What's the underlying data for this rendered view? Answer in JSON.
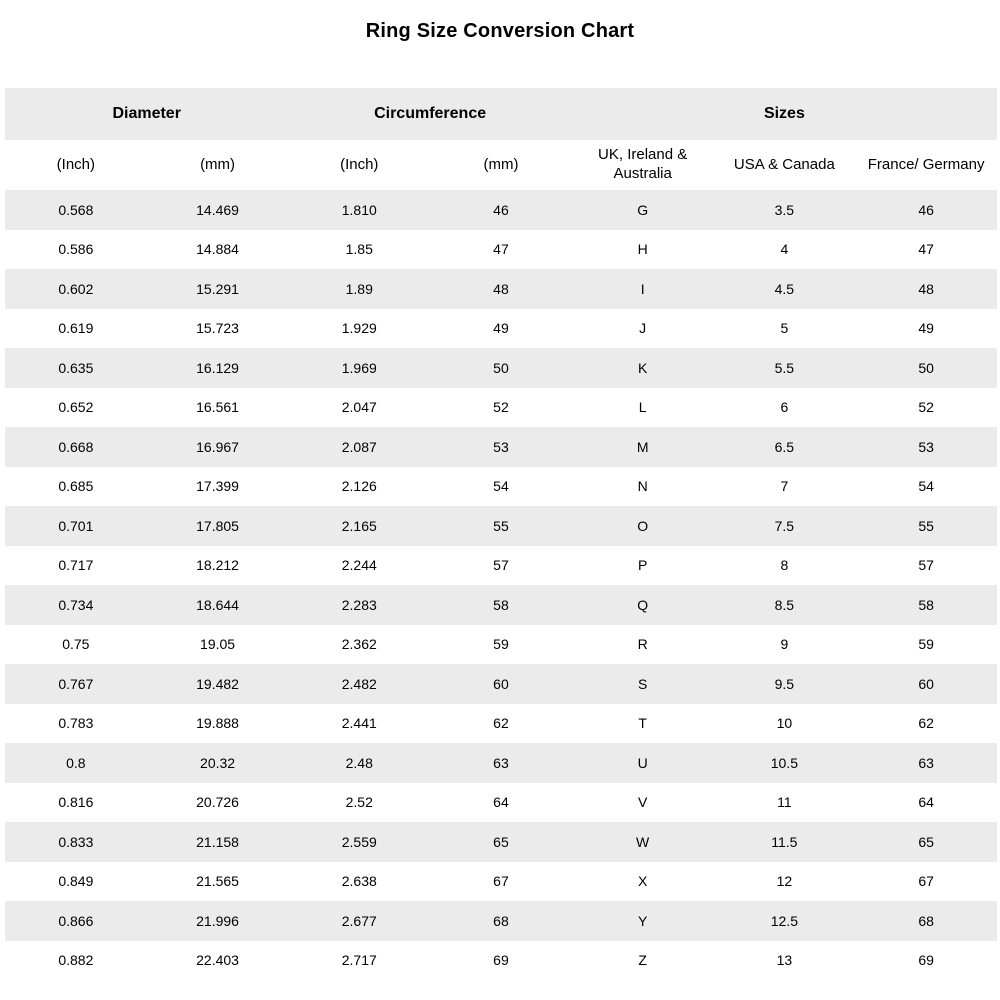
{
  "title": "Ring Size Conversion Chart",
  "colors": {
    "stripe": "#ebebeb",
    "background": "#ffffff",
    "text": "#000000"
  },
  "table": {
    "groups": [
      {
        "label": "Diameter",
        "span": "2"
      },
      {
        "label": "Circumference",
        "span": "2"
      },
      {
        "label": "Sizes",
        "span": "3"
      }
    ],
    "columns": [
      "(Inch)",
      "(mm)",
      "(Inch)",
      "(mm)",
      "UK, Ireland & Australia",
      "USA & Canada",
      "France/ Germany"
    ],
    "rows": [
      [
        "0.568",
        "14.469",
        "1.810",
        "46",
        "G",
        "3.5",
        "46"
      ],
      [
        "0.586",
        "14.884",
        "1.85",
        "47",
        "H",
        "4",
        "47"
      ],
      [
        "0.602",
        "15.291",
        "1.89",
        "48",
        "I",
        "4.5",
        "48"
      ],
      [
        "0.619",
        "15.723",
        "1.929",
        "49",
        "J",
        "5",
        "49"
      ],
      [
        "0.635",
        "16.129",
        "1.969",
        "50",
        "K",
        "5.5",
        "50"
      ],
      [
        "0.652",
        "16.561",
        "2.047",
        "52",
        "L",
        "6",
        "52"
      ],
      [
        "0.668",
        "16.967",
        "2.087",
        "53",
        "M",
        "6.5",
        "53"
      ],
      [
        "0.685",
        "17.399",
        "2.126",
        "54",
        "N",
        "7",
        "54"
      ],
      [
        "0.701",
        "17.805",
        "2.165",
        "55",
        "O",
        "7.5",
        "55"
      ],
      [
        "0.717",
        "18.212",
        "2.244",
        "57",
        "P",
        "8",
        "57"
      ],
      [
        "0.734",
        "18.644",
        "2.283",
        "58",
        "Q",
        "8.5",
        "58"
      ],
      [
        "0.75",
        "19.05",
        "2.362",
        "59",
        "R",
        "9",
        "59"
      ],
      [
        "0.767",
        "19.482",
        "2.482",
        "60",
        "S",
        "9.5",
        "60"
      ],
      [
        "0.783",
        "19.888",
        "2.441",
        "62",
        "T",
        "10",
        "62"
      ],
      [
        "0.8",
        "20.32",
        "2.48",
        "63",
        "U",
        "10.5",
        "63"
      ],
      [
        "0.816",
        "20.726",
        "2.52",
        "64",
        "V",
        "11",
        "64"
      ],
      [
        "0.833",
        "21.158",
        "2.559",
        "65",
        "W",
        "11.5",
        "65"
      ],
      [
        "0.849",
        "21.565",
        "2.638",
        "67",
        "X",
        "12",
        "67"
      ],
      [
        "0.866",
        "21.996",
        "2.677",
        "68",
        "Y",
        "12.5",
        "68"
      ],
      [
        "0.882",
        "22.403",
        "2.717",
        "69",
        "Z",
        "13",
        "69"
      ]
    ]
  },
  "chart_data": {
    "type": "table",
    "title": "Ring Size Conversion Chart",
    "column_groups": [
      {
        "label": "Diameter",
        "columns": [
          "(Inch)",
          "(mm)"
        ]
      },
      {
        "label": "Circumference",
        "columns": [
          "(Inch)",
          "(mm)"
        ]
      },
      {
        "label": "Sizes",
        "columns": [
          "UK, Ireland & Australia",
          "USA & Canada",
          "France/ Germany"
        ]
      }
    ],
    "columns": [
      "Diameter (Inch)",
      "Diameter (mm)",
      "Circumference (Inch)",
      "Circumference (mm)",
      "UK, Ireland & Australia",
      "USA & Canada",
      "France/ Germany"
    ],
    "rows": [
      [
        "0.568",
        "14.469",
        "1.810",
        "46",
        "G",
        "3.5",
        "46"
      ],
      [
        "0.586",
        "14.884",
        "1.85",
        "47",
        "H",
        "4",
        "47"
      ],
      [
        "0.602",
        "15.291",
        "1.89",
        "48",
        "I",
        "4.5",
        "48"
      ],
      [
        "0.619",
        "15.723",
        "1.929",
        "49",
        "J",
        "5",
        "49"
      ],
      [
        "0.635",
        "16.129",
        "1.969",
        "50",
        "K",
        "5.5",
        "50"
      ],
      [
        "0.652",
        "16.561",
        "2.047",
        "52",
        "L",
        "6",
        "52"
      ],
      [
        "0.668",
        "16.967",
        "2.087",
        "53",
        "M",
        "6.5",
        "53"
      ],
      [
        "0.685",
        "17.399",
        "2.126",
        "54",
        "N",
        "7",
        "54"
      ],
      [
        "0.701",
        "17.805",
        "2.165",
        "55",
        "O",
        "7.5",
        "55"
      ],
      [
        "0.717",
        "18.212",
        "2.244",
        "57",
        "P",
        "8",
        "57"
      ],
      [
        "0.734",
        "18.644",
        "2.283",
        "58",
        "Q",
        "8.5",
        "58"
      ],
      [
        "0.75",
        "19.05",
        "2.362",
        "59",
        "R",
        "9",
        "59"
      ],
      [
        "0.767",
        "19.482",
        "2.482",
        "60",
        "S",
        "9.5",
        "60"
      ],
      [
        "0.783",
        "19.888",
        "2.441",
        "62",
        "T",
        "10",
        "62"
      ],
      [
        "0.8",
        "20.32",
        "2.48",
        "63",
        "U",
        "10.5",
        "63"
      ],
      [
        "0.816",
        "20.726",
        "2.52",
        "64",
        "V",
        "11",
        "64"
      ],
      [
        "0.833",
        "21.158",
        "2.559",
        "65",
        "W",
        "11.5",
        "65"
      ],
      [
        "0.849",
        "21.565",
        "2.638",
        "67",
        "X",
        "12",
        "67"
      ],
      [
        "0.866",
        "21.996",
        "2.677",
        "68",
        "Y",
        "12.5",
        "68"
      ],
      [
        "0.882",
        "22.403",
        "2.717",
        "69",
        "Z",
        "13",
        "69"
      ]
    ],
    "layout": {
      "striped": true,
      "stripe_color": "#ebebeb",
      "grid": false,
      "header_groups_row": true
    }
  }
}
